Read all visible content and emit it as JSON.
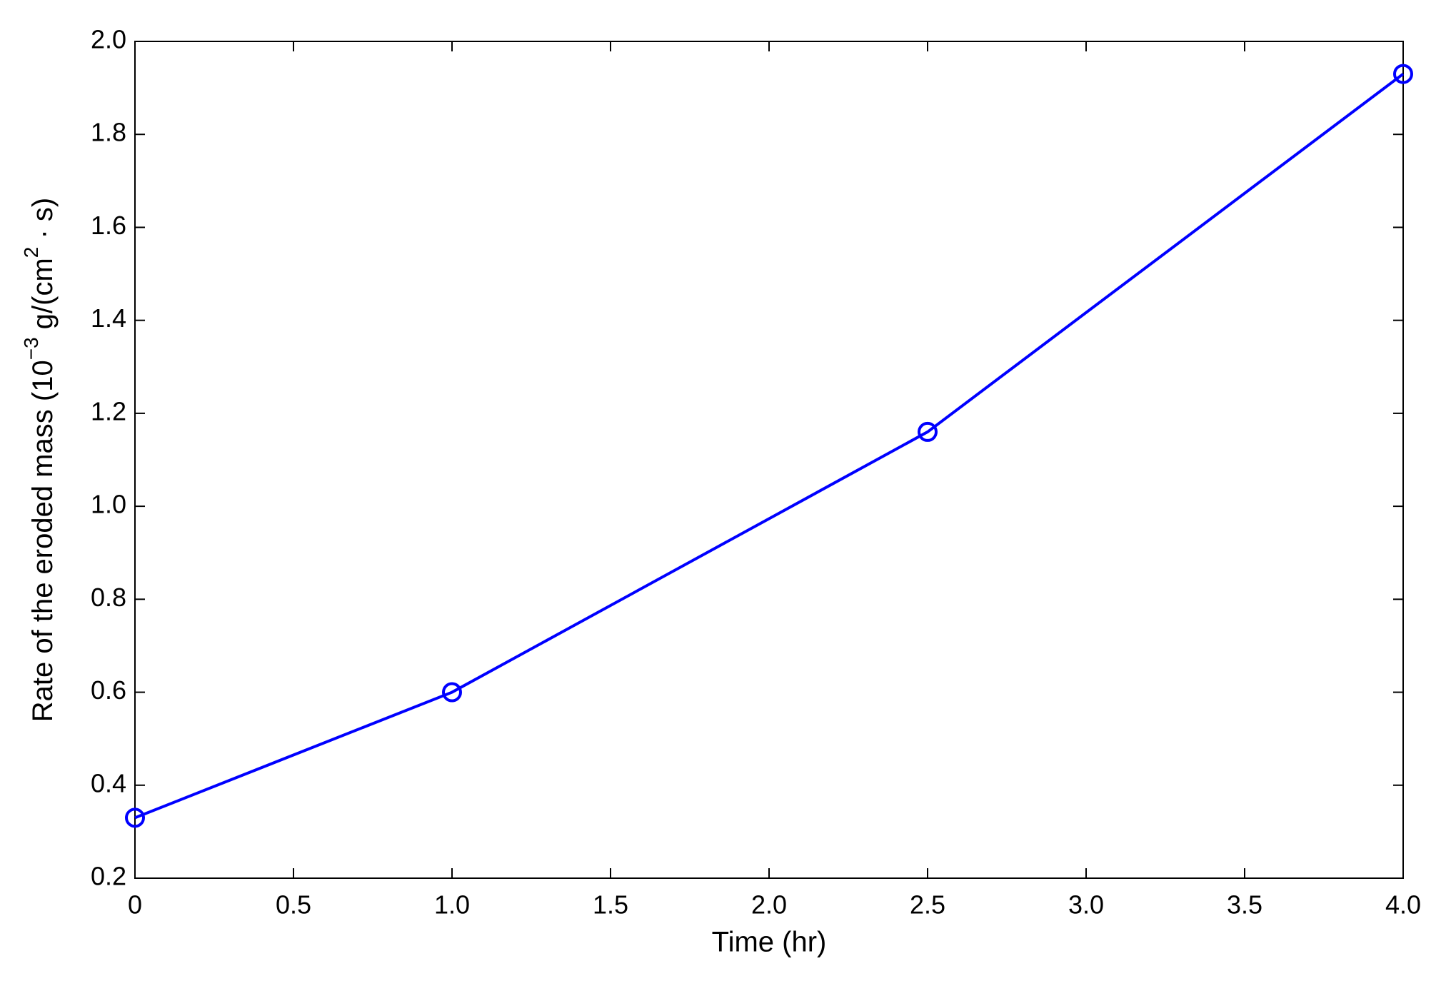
{
  "chart_data": {
    "type": "line",
    "xlabel": "Time (hr)",
    "ylabel_parts": [
      "Rate of the eroded mass (10",
      "−3",
      " g/(cm",
      "2",
      " · s)"
    ],
    "x": [
      0,
      1,
      2.5,
      4
    ],
    "series": [
      {
        "name": "Rate",
        "color": "#0000ff",
        "values": [
          0.33,
          0.6,
          1.16,
          1.93
        ]
      }
    ],
    "xlim": [
      0,
      4
    ],
    "xticks": [
      0,
      0.5,
      {
        "value": 1,
        "label": "1.0"
      },
      1.5,
      {
        "value": 2,
        "label": "2.0"
      },
      2.5,
      {
        "value": 3,
        "label": "3.0"
      },
      3.5,
      {
        "value": 4,
        "label": "4.0"
      }
    ],
    "ylim": [
      0.2,
      2
    ],
    "yticks": [
      0.2,
      0.4,
      0.6,
      0.8,
      {
        "value": 1,
        "label": "1.0"
      },
      1.2,
      1.4,
      1.6,
      1.8,
      {
        "value": 2,
        "label": "2.0"
      }
    ],
    "grid": false,
    "marker": "circle"
  }
}
